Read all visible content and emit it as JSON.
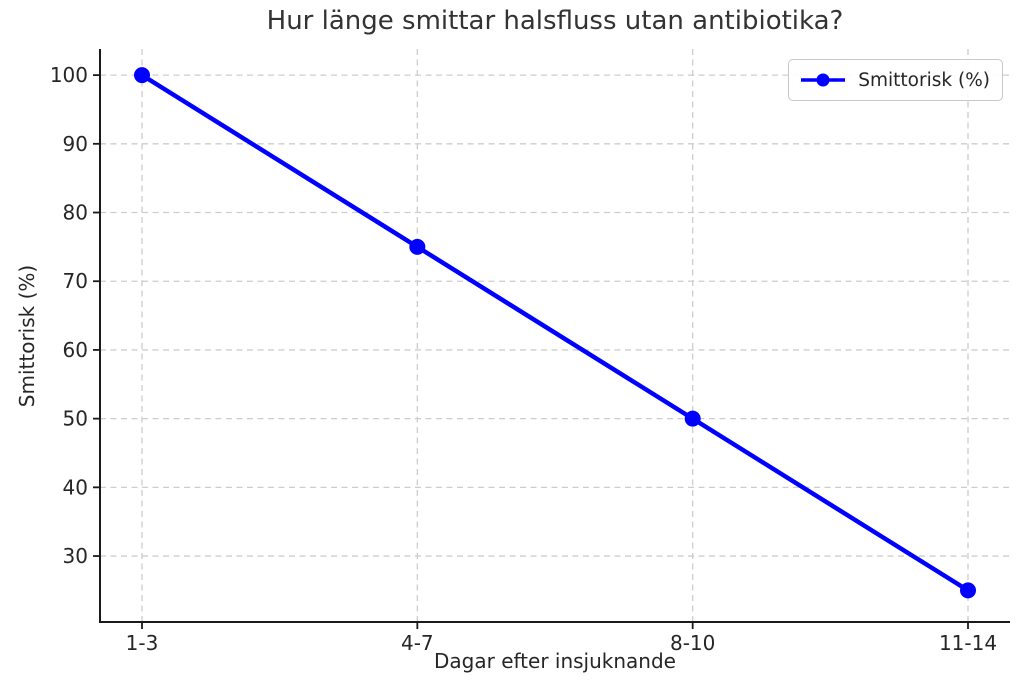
{
  "chart_data": {
    "type": "line",
    "title": "Hur länge smittar halsfluss utan antibiotika?",
    "xlabel": "Dagar efter insjuknande",
    "ylabel": "Smittorisk (%)",
    "categories": [
      "1-3",
      "4-7",
      "8-10",
      "11-14"
    ],
    "series": [
      {
        "name": "Smittorisk (%)",
        "values": [
          100,
          75,
          50,
          25
        ],
        "color": "#0000ff"
      }
    ],
    "yticks": [
      30,
      40,
      50,
      60,
      70,
      80,
      90,
      100
    ],
    "ylim": [
      20.4,
      103.8
    ],
    "grid": true,
    "grid_style": "dashed",
    "legend_position": "upper-right",
    "colors": {
      "line": "#0000ff",
      "grid": "#cdcdcd",
      "axis": "#1a1a1a",
      "text": "#262626",
      "title": "#333333",
      "background": "#ffffff",
      "legend_border": "#c8c8c8"
    }
  }
}
